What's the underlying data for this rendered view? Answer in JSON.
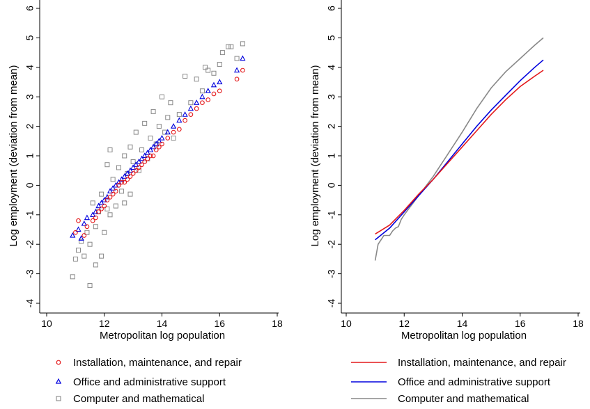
{
  "colors": {
    "installation": "#e41a1c",
    "office": "#0000dd",
    "computer": "#888888",
    "axis": "#000000"
  },
  "chart_data": [
    {
      "type": "scatter",
      "xlabel": "Metropolitan log population",
      "ylabel": "Log employment (deviation from mean)",
      "xlim": [
        10,
        18
      ],
      "ylim": [
        -4,
        6
      ],
      "xticks": [
        "10",
        "12",
        "14",
        "16",
        "18"
      ],
      "yticks": [
        "-4",
        "-3",
        "-2",
        "-1",
        "0",
        "1",
        "2",
        "3",
        "4",
        "5",
        "6"
      ],
      "grid": false,
      "legend_position": "bottom",
      "series": [
        {
          "name": "Installation, maintenance, and repair",
          "marker": "circle",
          "color": "#e41a1c",
          "points": [
            [
              11.0,
              -1.6
            ],
            [
              11.1,
              -1.2
            ],
            [
              11.3,
              -1.7
            ],
            [
              11.4,
              -1.4
            ],
            [
              11.6,
              -1.2
            ],
            [
              11.7,
              -1.1
            ],
            [
              11.8,
              -0.9
            ],
            [
              11.9,
              -0.8
            ],
            [
              12.0,
              -0.7
            ],
            [
              12.1,
              -0.5
            ],
            [
              12.2,
              -0.4
            ],
            [
              12.3,
              -0.3
            ],
            [
              12.4,
              -0.2
            ],
            [
              12.5,
              0.0
            ],
            [
              12.6,
              0.1
            ],
            [
              12.7,
              0.1
            ],
            [
              12.8,
              0.2
            ],
            [
              12.9,
              0.3
            ],
            [
              13.0,
              0.4
            ],
            [
              13.1,
              0.5
            ],
            [
              13.2,
              0.6
            ],
            [
              13.3,
              0.7
            ],
            [
              13.4,
              0.8
            ],
            [
              13.5,
              0.9
            ],
            [
              13.6,
              1.0
            ],
            [
              13.7,
              1.0
            ],
            [
              13.8,
              1.2
            ],
            [
              13.9,
              1.3
            ],
            [
              14.0,
              1.4
            ],
            [
              14.2,
              1.6
            ],
            [
              14.4,
              1.8
            ],
            [
              14.6,
              1.9
            ],
            [
              14.8,
              2.2
            ],
            [
              15.0,
              2.4
            ],
            [
              15.2,
              2.6
            ],
            [
              15.4,
              2.8
            ],
            [
              15.6,
              2.9
            ],
            [
              15.8,
              3.1
            ],
            [
              16.0,
              3.2
            ],
            [
              16.6,
              3.6
            ],
            [
              16.8,
              3.9
            ]
          ]
        },
        {
          "name": "Office and administrative support",
          "marker": "triangle",
          "color": "#0000dd",
          "points": [
            [
              10.9,
              -1.7
            ],
            [
              11.1,
              -1.5
            ],
            [
              11.2,
              -1.8
            ],
            [
              11.3,
              -1.3
            ],
            [
              11.4,
              -1.1
            ],
            [
              11.6,
              -1.0
            ],
            [
              11.7,
              -0.9
            ],
            [
              11.8,
              -0.7
            ],
            [
              11.9,
              -0.6
            ],
            [
              12.0,
              -0.5
            ],
            [
              12.1,
              -0.4
            ],
            [
              12.2,
              -0.2
            ],
            [
              12.3,
              -0.1
            ],
            [
              12.4,
              0.0
            ],
            [
              12.5,
              0.1
            ],
            [
              12.6,
              0.2
            ],
            [
              12.7,
              0.3
            ],
            [
              12.8,
              0.4
            ],
            [
              12.9,
              0.5
            ],
            [
              13.0,
              0.6
            ],
            [
              13.1,
              0.7
            ],
            [
              13.2,
              0.8
            ],
            [
              13.3,
              0.9
            ],
            [
              13.4,
              1.0
            ],
            [
              13.5,
              1.1
            ],
            [
              13.6,
              1.2
            ],
            [
              13.7,
              1.3
            ],
            [
              13.8,
              1.4
            ],
            [
              13.9,
              1.5
            ],
            [
              14.0,
              1.6
            ],
            [
              14.2,
              1.8
            ],
            [
              14.4,
              2.0
            ],
            [
              14.6,
              2.2
            ],
            [
              14.8,
              2.4
            ],
            [
              15.0,
              2.6
            ],
            [
              15.2,
              2.8
            ],
            [
              15.4,
              3.0
            ],
            [
              15.6,
              3.2
            ],
            [
              15.8,
              3.4
            ],
            [
              16.0,
              3.5
            ],
            [
              16.6,
              3.9
            ],
            [
              16.8,
              4.3
            ]
          ]
        },
        {
          "name": "Computer and mathematical",
          "marker": "square",
          "color": "#888888",
          "points": [
            [
              10.9,
              -3.1
            ],
            [
              11.0,
              -2.5
            ],
            [
              11.1,
              -2.2
            ],
            [
              11.2,
              -1.9
            ],
            [
              11.3,
              -2.4
            ],
            [
              11.4,
              -1.6
            ],
            [
              11.5,
              -3.4
            ],
            [
              11.5,
              -2.0
            ],
            [
              11.6,
              -0.6
            ],
            [
              11.7,
              -2.7
            ],
            [
              11.7,
              -1.4
            ],
            [
              11.8,
              -0.9
            ],
            [
              11.9,
              -2.4
            ],
            [
              11.9,
              -0.3
            ],
            [
              12.0,
              -1.6
            ],
            [
              12.1,
              0.7
            ],
            [
              12.1,
              -0.8
            ],
            [
              12.2,
              1.2
            ],
            [
              12.2,
              -1.0
            ],
            [
              12.3,
              0.2
            ],
            [
              12.4,
              -0.7
            ],
            [
              12.5,
              0.6
            ],
            [
              12.6,
              -0.2
            ],
            [
              12.7,
              1.0
            ],
            [
              12.7,
              -0.6
            ],
            [
              12.8,
              0.4
            ],
            [
              12.9,
              1.3
            ],
            [
              12.9,
              -0.3
            ],
            [
              13.0,
              0.8
            ],
            [
              13.1,
              1.8
            ],
            [
              13.2,
              0.5
            ],
            [
              13.3,
              1.2
            ],
            [
              13.4,
              2.1
            ],
            [
              13.5,
              0.9
            ],
            [
              13.6,
              1.6
            ],
            [
              13.7,
              2.5
            ],
            [
              13.8,
              1.4
            ],
            [
              13.9,
              2.0
            ],
            [
              14.0,
              3.0
            ],
            [
              14.1,
              1.8
            ],
            [
              14.2,
              2.3
            ],
            [
              14.3,
              2.8
            ],
            [
              14.4,
              1.6
            ],
            [
              14.6,
              2.4
            ],
            [
              14.8,
              3.7
            ],
            [
              15.0,
              2.8
            ],
            [
              15.2,
              3.6
            ],
            [
              15.4,
              3.2
            ],
            [
              15.5,
              4.0
            ],
            [
              15.6,
              3.9
            ],
            [
              15.8,
              3.8
            ],
            [
              16.0,
              4.1
            ],
            [
              16.1,
              4.5
            ],
            [
              16.3,
              4.7
            ],
            [
              16.4,
              4.7
            ],
            [
              16.6,
              4.3
            ],
            [
              16.8,
              4.8
            ]
          ]
        }
      ]
    },
    {
      "type": "line",
      "xlabel": "Metropolitan log population",
      "ylabel": "Log employment (deviation from mean)",
      "xlim": [
        10,
        18
      ],
      "ylim": [
        -4,
        6
      ],
      "xticks": [
        "10",
        "12",
        "14",
        "16",
        "18"
      ],
      "yticks": [
        "-4",
        "-3",
        "-2",
        "-1",
        "0",
        "1",
        "2",
        "3",
        "4",
        "5",
        "6"
      ],
      "grid": false,
      "legend_position": "bottom",
      "series": [
        {
          "name": "Installation, maintenance, and repair",
          "color": "#e41a1c",
          "points": [
            [
              11.0,
              -1.65
            ],
            [
              11.5,
              -1.35
            ],
            [
              12.0,
              -0.85
            ],
            [
              12.5,
              -0.3
            ],
            [
              13.0,
              0.2
            ],
            [
              13.5,
              0.75
            ],
            [
              14.0,
              1.3
            ],
            [
              14.5,
              1.85
            ],
            [
              15.0,
              2.4
            ],
            [
              15.5,
              2.9
            ],
            [
              16.0,
              3.35
            ],
            [
              16.5,
              3.7
            ],
            [
              16.8,
              3.9
            ]
          ]
        },
        {
          "name": "Office and administrative support",
          "color": "#0000dd",
          "points": [
            [
              11.0,
              -1.85
            ],
            [
              11.5,
              -1.45
            ],
            [
              12.0,
              -0.9
            ],
            [
              12.5,
              -0.35
            ],
            [
              13.0,
              0.2
            ],
            [
              13.5,
              0.8
            ],
            [
              14.0,
              1.4
            ],
            [
              14.5,
              2.0
            ],
            [
              15.0,
              2.55
            ],
            [
              15.5,
              3.05
            ],
            [
              16.0,
              3.55
            ],
            [
              16.5,
              4.0
            ],
            [
              16.8,
              4.25
            ]
          ]
        },
        {
          "name": "Computer and mathematical",
          "color": "#888888",
          "points": [
            [
              11.0,
              -2.55
            ],
            [
              11.1,
              -2.0
            ],
            [
              11.3,
              -1.7
            ],
            [
              11.5,
              -1.7
            ],
            [
              11.6,
              -1.55
            ],
            [
              11.7,
              -1.45
            ],
            [
              11.8,
              -1.4
            ],
            [
              11.9,
              -1.15
            ],
            [
              12.0,
              -1.0
            ],
            [
              12.5,
              -0.35
            ],
            [
              13.0,
              0.3
            ],
            [
              13.5,
              1.05
            ],
            [
              14.0,
              1.8
            ],
            [
              14.5,
              2.6
            ],
            [
              15.0,
              3.3
            ],
            [
              15.5,
              3.85
            ],
            [
              16.0,
              4.3
            ],
            [
              16.5,
              4.75
            ],
            [
              16.8,
              5.0
            ]
          ]
        }
      ]
    }
  ]
}
